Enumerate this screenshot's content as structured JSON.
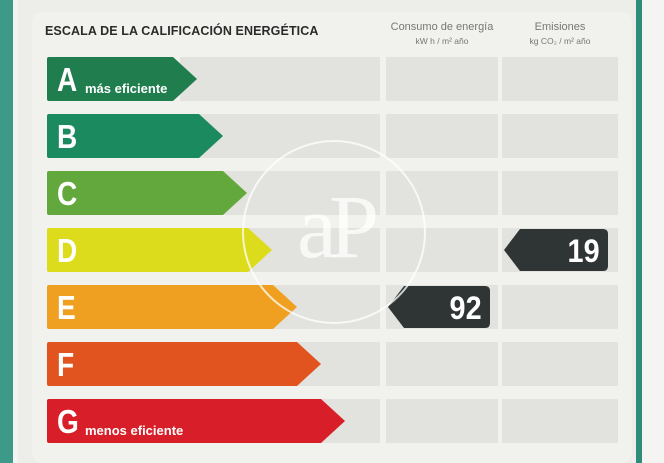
{
  "header": {
    "title": "ESCALA DE LA CALIFICACIÓN ENERGÉTICA",
    "col_consumo": "Consumo de energía",
    "col_consumo_unit": "kW h / m² año",
    "col_emisiones": "Emisiones",
    "col_emisiones_unit": "kg CO₂ / m² año"
  },
  "ratings": [
    {
      "letter": "A",
      "label": "más eficiente",
      "color": "#1f7d4e"
    },
    {
      "letter": "B",
      "label": "",
      "color": "#1b8a5e"
    },
    {
      "letter": "C",
      "label": "",
      "color": "#63a83c"
    },
    {
      "letter": "D",
      "label": "",
      "color": "#dcdc1c"
    },
    {
      "letter": "E",
      "label": "",
      "color": "#f0a020"
    },
    {
      "letter": "F",
      "label": "",
      "color": "#e2541f"
    },
    {
      "letter": "G",
      "label": "menos eficiente",
      "color": "#d81e28"
    }
  ],
  "consumo": {
    "value": "92",
    "rating": "E"
  },
  "emisiones": {
    "value": "19",
    "rating": "D"
  },
  "watermark": {
    "text": "aP"
  }
}
